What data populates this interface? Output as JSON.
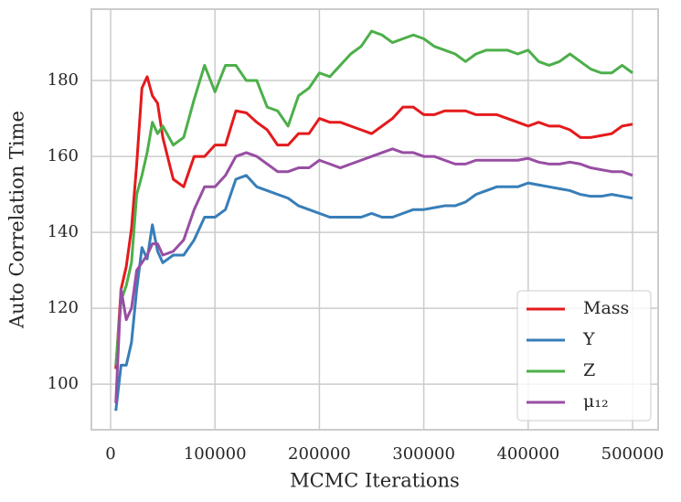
{
  "chart_data": {
    "type": "line",
    "xlabel": "MCMC Iterations",
    "ylabel": "Auto Correlation Time",
    "x": [
      5000,
      10000,
      15000,
      20000,
      25000,
      30000,
      35000,
      40000,
      45000,
      50000,
      60000,
      70000,
      80000,
      90000,
      100000,
      110000,
      120000,
      130000,
      140000,
      150000,
      160000,
      170000,
      180000,
      190000,
      200000,
      210000,
      220000,
      230000,
      240000,
      250000,
      260000,
      270000,
      280000,
      290000,
      300000,
      310000,
      320000,
      330000,
      340000,
      350000,
      360000,
      370000,
      380000,
      390000,
      400000,
      410000,
      420000,
      430000,
      440000,
      450000,
      460000,
      470000,
      480000,
      490000,
      500000
    ],
    "series": [
      {
        "name": "Mass",
        "color": "#e41a1c",
        "values": [
          104,
          125,
          131,
          141,
          158,
          178,
          181,
          176,
          174,
          165,
          154,
          152,
          160,
          160,
          163,
          163,
          172,
          171.5,
          169,
          167,
          163,
          163,
          166,
          166,
          170,
          169,
          169,
          168,
          167,
          166,
          168,
          170,
          173,
          173,
          171,
          171,
          172,
          172,
          172,
          171,
          171,
          171,
          170,
          169,
          168,
          169,
          168,
          168,
          167,
          165,
          165,
          165.5,
          166,
          168,
          168.5
        ]
      },
      {
        "name": "Y",
        "color": "#377eb8",
        "values": [
          93,
          105,
          105,
          111,
          125,
          136,
          133,
          142,
          135,
          132,
          134,
          134,
          138,
          144,
          144,
          146,
          154,
          155,
          152,
          151,
          150,
          149,
          147,
          146,
          145,
          144,
          144,
          144,
          144,
          145,
          144,
          144,
          145,
          146,
          146,
          146.5,
          147,
          147,
          148,
          150,
          151,
          152,
          152,
          152,
          153,
          152.5,
          152,
          151.5,
          151,
          150,
          149.5,
          149.5,
          150,
          149.5,
          149
        ]
      },
      {
        "name": "Z",
        "color": "#4daf4a",
        "values": [
          105,
          122,
          126,
          132,
          150,
          155,
          161,
          169,
          166,
          168,
          163,
          165,
          175,
          184,
          177,
          184,
          184,
          180,
          180,
          173,
          172,
          168,
          176,
          178,
          182,
          181,
          184,
          187,
          189,
          193,
          192,
          190,
          191,
          192,
          191,
          189,
          188,
          187,
          185,
          187,
          188,
          188,
          188,
          187,
          188,
          185,
          184,
          185,
          187,
          185,
          183,
          182,
          182,
          184,
          182
        ]
      },
      {
        "name": "μ₁₂",
        "color": "#984ea3",
        "values": [
          95,
          125,
          117,
          120,
          130,
          132,
          134,
          137,
          137,
          134,
          135,
          138,
          146,
          152,
          152,
          155,
          160,
          161,
          160,
          158,
          156,
          156,
          157,
          157,
          159,
          158,
          157,
          158,
          159,
          160,
          161,
          162,
          161,
          161,
          160,
          160,
          159,
          158,
          158,
          159,
          159,
          159,
          159,
          159,
          159.5,
          158.5,
          158,
          158,
          158.5,
          158,
          157,
          156.5,
          156,
          156,
          155
        ]
      }
    ],
    "xlim": [
      -18400,
      524500
    ],
    "ylim": [
      88,
      198.8
    ],
    "xticks": [
      0,
      100000,
      200000,
      300000,
      400000,
      500000
    ],
    "yticks": [
      100,
      120,
      140,
      160,
      180
    ],
    "grid": true,
    "legend": "lower right"
  }
}
